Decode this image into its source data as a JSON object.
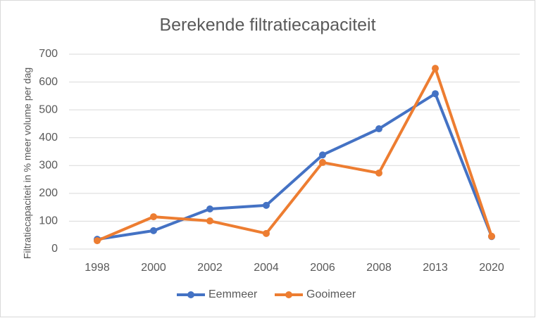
{
  "chart_data": {
    "type": "line",
    "title": "Berekende filtratiecapaciteit",
    "y_label": "Filtratiecapaciteit in % meer volume per dag",
    "categories": [
      "1998",
      "2000",
      "2002",
      "2004",
      "2006",
      "2008",
      "2013",
      "2020"
    ],
    "series": [
      {
        "name": "Eemmeer",
        "color": "#4472c4",
        "values": [
          35,
          66,
          144,
          157,
          338,
          432,
          558,
          45
        ]
      },
      {
        "name": "Gooimeer",
        "color": "#ed7d31",
        "values": [
          30,
          116,
          101,
          56,
          311,
          273,
          649,
          46
        ]
      }
    ],
    "ylim": [
      0,
      700
    ],
    "yticks": [
      0,
      100,
      200,
      300,
      400,
      500,
      600,
      700
    ],
    "grid": true,
    "legend": "bottom"
  }
}
